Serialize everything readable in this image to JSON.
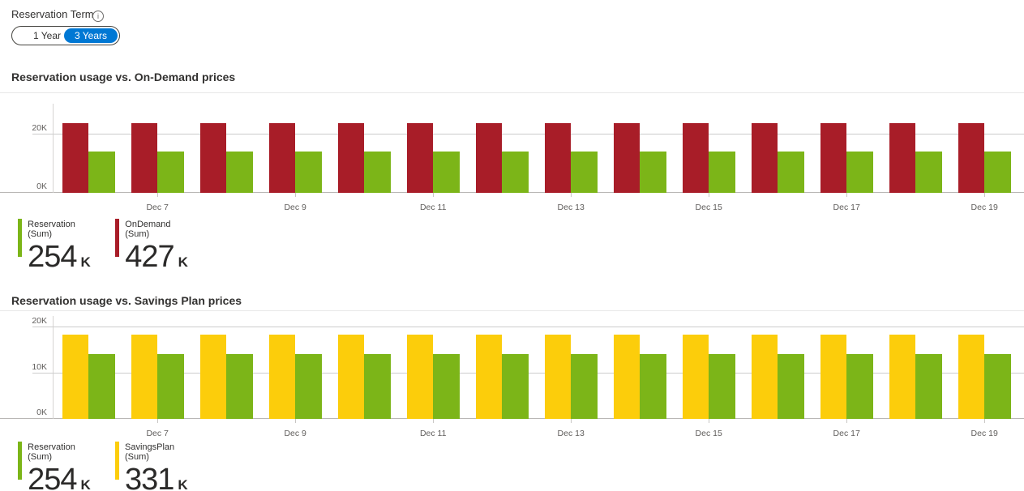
{
  "reservation_term": {
    "label": "Reservation Term",
    "options": [
      {
        "label": "1 Year",
        "selected": false
      },
      {
        "label": "3 Years",
        "selected": true
      }
    ],
    "selected_color": "#0078d4"
  },
  "chart_data": [
    {
      "type": "bar",
      "title": "Reservation usage vs. On-Demand prices",
      "categories": [
        "Dec 6",
        "Dec 7",
        "Dec 8",
        "Dec 9",
        "Dec 10",
        "Dec 11",
        "Dec 12",
        "Dec 13",
        "Dec 14",
        "Dec 15",
        "Dec 16",
        "Dec 17",
        "Dec 18",
        "Dec 19"
      ],
      "series": [
        {
          "name": "OnDemand",
          "color": "#a81d28",
          "values": [
            23.7,
            23.7,
            23.7,
            23.7,
            23.7,
            23.7,
            23.7,
            23.7,
            23.7,
            23.7,
            23.7,
            23.7,
            23.7,
            23.7
          ]
        },
        {
          "name": "Reservation",
          "color": "#7cb518",
          "values": [
            14.1,
            14.1,
            14.1,
            14.1,
            14.1,
            14.1,
            14.1,
            14.1,
            14.1,
            14.1,
            14.1,
            14.1,
            14.1,
            14.1
          ]
        }
      ],
      "unit": "K",
      "ylim": [
        0,
        30.4
      ],
      "yticks": [
        {
          "value": 0,
          "label": "0K"
        },
        {
          "value": 20,
          "label": "20K"
        }
      ],
      "xticks": [
        {
          "index": 1,
          "label": "Dec 7"
        },
        {
          "index": 3,
          "label": "Dec 9"
        },
        {
          "index": 5,
          "label": "Dec 11"
        },
        {
          "index": 7,
          "label": "Dec 13"
        },
        {
          "index": 9,
          "label": "Dec 15"
        },
        {
          "index": 11,
          "label": "Dec 17"
        },
        {
          "index": 13,
          "label": "Dec 19"
        }
      ],
      "grid": "horizontal",
      "legend_position": "bottom-left",
      "legend": [
        {
          "label": "Reservation (Sum)",
          "value": "254",
          "unit": "K",
          "color": "#7cb518"
        },
        {
          "label": "OnDemand (Sum)",
          "value": "427",
          "unit": "K",
          "color": "#a81d28"
        }
      ]
    },
    {
      "type": "bar",
      "title": "Reservation usage vs. Savings Plan prices",
      "categories": [
        "Dec 6",
        "Dec 7",
        "Dec 8",
        "Dec 9",
        "Dec 10",
        "Dec 11",
        "Dec 12",
        "Dec 13",
        "Dec 14",
        "Dec 15",
        "Dec 16",
        "Dec 17",
        "Dec 18",
        "Dec 19"
      ],
      "series": [
        {
          "name": "SavingsPlan",
          "color": "#fccd0b",
          "values": [
            18.4,
            18.4,
            18.4,
            18.4,
            18.4,
            18.4,
            18.4,
            18.4,
            18.4,
            18.4,
            18.4,
            18.4,
            18.4,
            18.4
          ]
        },
        {
          "name": "Reservation",
          "color": "#7cb518",
          "values": [
            14.1,
            14.1,
            14.1,
            14.1,
            14.1,
            14.1,
            14.1,
            14.1,
            14.1,
            14.1,
            14.1,
            14.1,
            14.1,
            14.1
          ]
        }
      ],
      "unit": "K",
      "ylim": [
        0,
        22.5
      ],
      "yticks": [
        {
          "value": 0,
          "label": "0K"
        },
        {
          "value": 10,
          "label": "10K"
        },
        {
          "value": 20,
          "label": "20K"
        }
      ],
      "xticks": [
        {
          "index": 1,
          "label": "Dec 7"
        },
        {
          "index": 3,
          "label": "Dec 9"
        },
        {
          "index": 5,
          "label": "Dec 11"
        },
        {
          "index": 7,
          "label": "Dec 13"
        },
        {
          "index": 9,
          "label": "Dec 15"
        },
        {
          "index": 11,
          "label": "Dec 17"
        },
        {
          "index": 13,
          "label": "Dec 19"
        }
      ],
      "grid": "horizontal",
      "legend_position": "bottom-left",
      "legend": [
        {
          "label": "Reservation (Sum)",
          "value": "254",
          "unit": "K",
          "color": "#7cb518"
        },
        {
          "label": "SavingsPlan (Sum)",
          "value": "331",
          "unit": "K",
          "color": "#fccd0b"
        }
      ]
    }
  ]
}
